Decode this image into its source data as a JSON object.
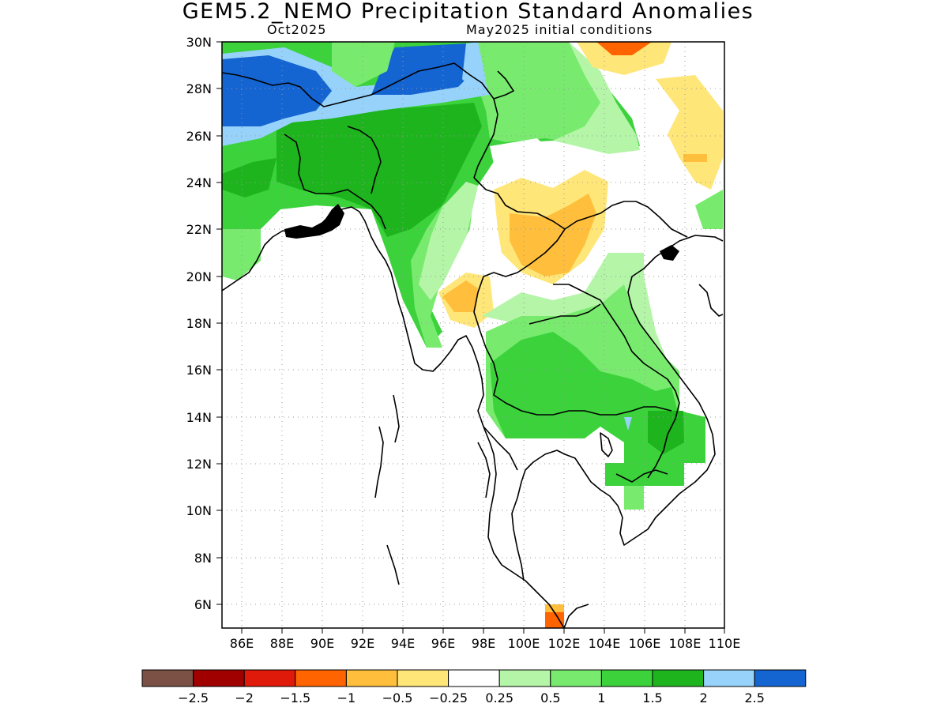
{
  "title": "GEM5.2_NEMO Precipitation Standard Anomalies",
  "subtitle_left": "Oct2025",
  "subtitle_right": "May2025 initial conditions",
  "map": {
    "lon_range": [
      85,
      110
    ],
    "lat_range": [
      5,
      30
    ],
    "lon_ticks": [
      "86E",
      "88E",
      "90E",
      "92E",
      "94E",
      "96E",
      "98E",
      "100E",
      "102E",
      "104E",
      "106E",
      "108E",
      "110E"
    ],
    "lat_ticks": [
      "6N",
      "8N",
      "10N",
      "12N",
      "14N",
      "16N",
      "18N",
      "20N",
      "22N",
      "24N",
      "26N",
      "28N",
      "30N"
    ],
    "grid": "dotted"
  },
  "legend": {
    "colors": [
      "#7a5144",
      "#a00000",
      "#e01a0a",
      "#ff6400",
      "#ffbe3c",
      "#ffe678",
      "#ffffff",
      "#b4f5a8",
      "#78eb6e",
      "#3cd23c",
      "#1eb41e",
      "#96d2fa",
      "#1464d2"
    ],
    "labels": [
      "−2.5",
      "−2",
      "−1.5",
      "−1",
      "−0.5",
      "−0.25",
      "0.25",
      "0.5",
      "1",
      "1.5",
      "2",
      "2.5"
    ]
  }
}
